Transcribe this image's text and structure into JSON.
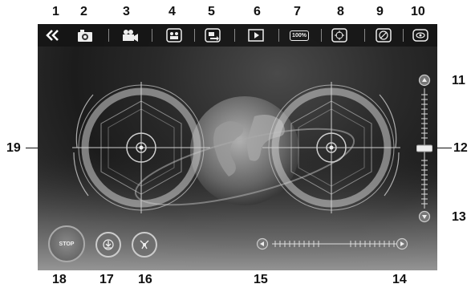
{
  "callouts": {
    "c1": "1",
    "c2": "2",
    "c3": "3",
    "c4": "4",
    "c5": "5",
    "c6": "6",
    "c7": "7",
    "c8": "8",
    "c9": "9",
    "c10": "10",
    "c11": "11",
    "c12": "12",
    "c13": "13",
    "c14": "14",
    "c15": "15",
    "c16": "16",
    "c17": "17",
    "c18": "18",
    "c19": "19"
  },
  "toolbar": {
    "zoom_label": "100%"
  },
  "controls": {
    "stop_label": "STOP"
  },
  "icons": {
    "back": "double-chevron-left-icon",
    "photo": "camera-icon",
    "video": "video-camera-icon",
    "gallery": "photo-gallery-icon",
    "media": "media-transfer-icon",
    "play": "play-icon",
    "zoom": "zoom-100-icon",
    "gyro": "gyro-calibrate-icon",
    "vr": "vr-mode-icon",
    "view": "eye-icon",
    "up": "arrow-up-icon",
    "down": "arrow-down-icon",
    "left": "arrow-left-icon",
    "right": "arrow-right-icon",
    "land": "landing-icon",
    "headless": "headless-mode-icon"
  }
}
